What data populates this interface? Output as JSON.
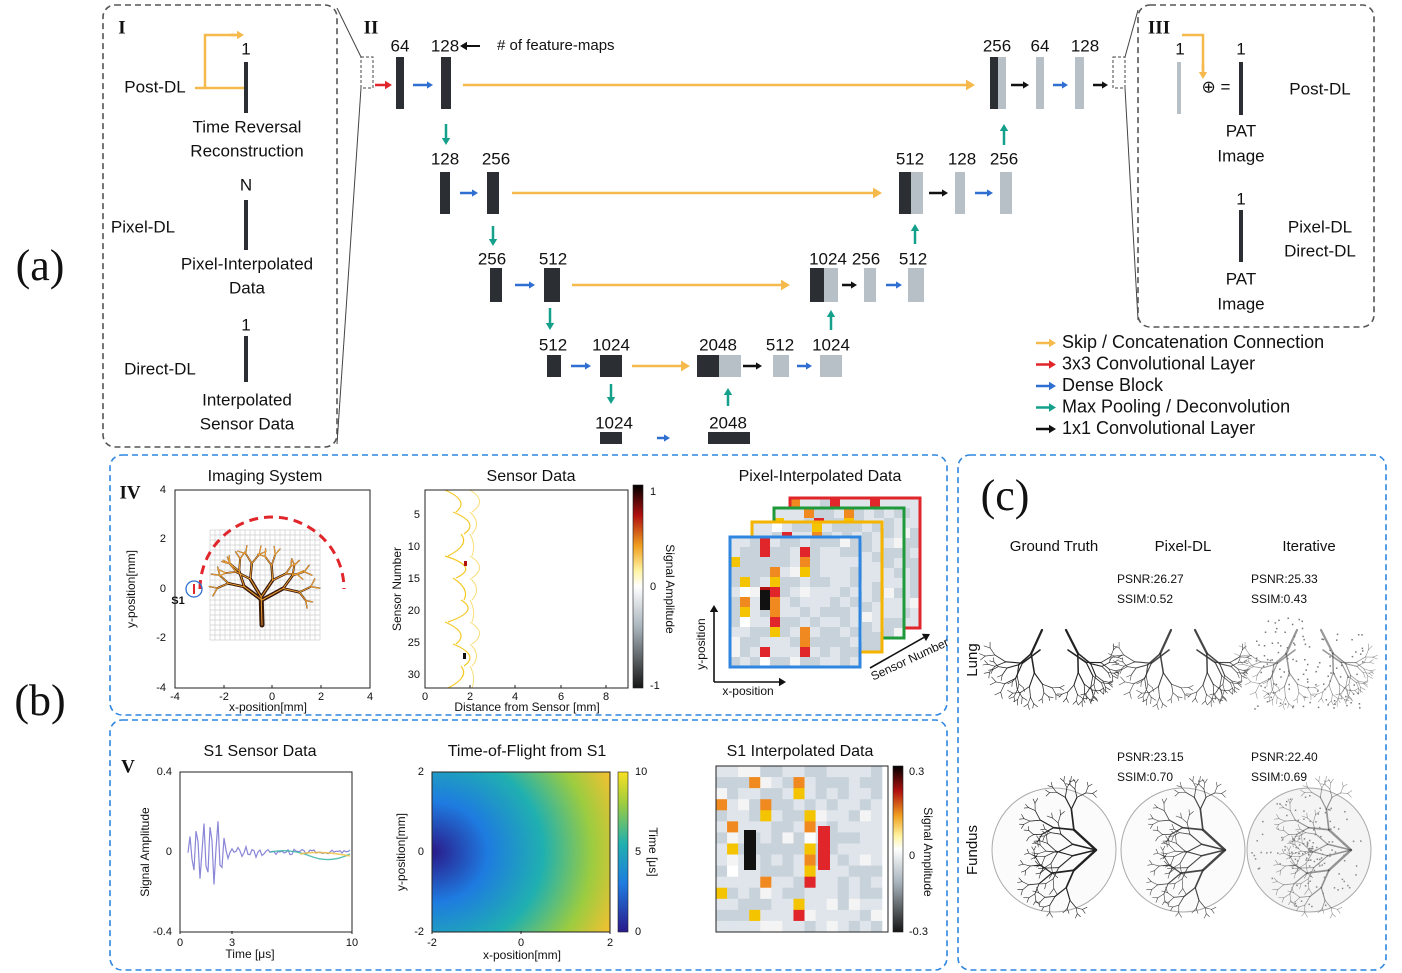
{
  "panel_labels": [
    "(a)",
    "(b)",
    "(c)"
  ],
  "architecture": {
    "input_box": {
      "numeral": "I",
      "rows": [
        {
          "method": "Post-DL",
          "channels": "1",
          "caption": [
            "Time Reversal",
            "Reconstruction"
          ]
        },
        {
          "method": "Pixel-DL",
          "channels": "N",
          "caption": [
            "Pixel-Interpolated",
            "Data"
          ]
        },
        {
          "method": "Direct-DL",
          "channels": "1",
          "caption": [
            "Interpolated",
            "Sensor Data"
          ]
        }
      ]
    },
    "network": {
      "numeral": "II",
      "annotation": "# of feature-maps",
      "feature_maps": [
        "64",
        "128",
        "128",
        "256",
        "256",
        "512",
        "512",
        "1024",
        "1024",
        "2048",
        "2048",
        "512",
        "1024",
        "1024",
        "256",
        "512",
        "512",
        "128",
        "256",
        "256",
        "64",
        "128"
      ]
    },
    "output_box": {
      "numeral": "III",
      "input_channels": "1",
      "operator": "⊕ =",
      "rows": [
        {
          "channels": "1",
          "methods": [
            "Post-DL"
          ],
          "output": [
            "PAT",
            "Image"
          ]
        },
        {
          "channels": "1",
          "methods": [
            "Pixel-DL",
            "Direct-DL"
          ],
          "output": [
            "PAT",
            "Image"
          ]
        }
      ]
    },
    "legend": [
      {
        "name": "Skip / Concatenation Connection",
        "color": "#f5b94c"
      },
      {
        "name": "3x3 Convolutional Layer",
        "color": "#e0262b"
      },
      {
        "name": "Dense Block",
        "color": "#2f6fd1"
      },
      {
        "name": "Max Pooling / Deconvolution",
        "color": "#14a08a"
      },
      {
        "name": "1x1 Convolutional Layer",
        "color": "#111111"
      }
    ]
  },
  "simulation": {
    "numeral": "IV",
    "imaging_system": {
      "title": "Imaging System",
      "xlabel": "x-position[mm]",
      "ylabel": "y-position[mm]",
      "xticks": [
        "-4",
        "-2",
        "0",
        "2",
        "4"
      ],
      "yticks": [
        "4",
        "2",
        "0",
        "-2",
        "-4"
      ],
      "sensor": "S1"
    },
    "sensor_data": {
      "title": "Sensor Data",
      "xlabel": "Distance from Sensor [mm]",
      "ylabel": "Sensor Number",
      "xticks": [
        "0",
        "2",
        "4",
        "6",
        "8"
      ],
      "yticks": [
        "5",
        "10",
        "15",
        "20",
        "25",
        "30"
      ],
      "colorbar_label": "Signal Amplitude",
      "colorbar_ticks": [
        "1",
        "0",
        "-1"
      ]
    },
    "pixel_interpolated": {
      "title": "Pixel-Interpolated Data",
      "xlabel": "x-position",
      "ylabel": "y-position",
      "zlabel": "Sensor Number"
    }
  },
  "sensor_s1": {
    "numeral": "V",
    "sensor_data": {
      "title": "S1 Sensor Data",
      "xlabel": "Time [μs]",
      "ylabel": "Signal Amplitude",
      "xticks": [
        "0",
        "3",
        "10"
      ],
      "yticks": [
        "0.4",
        "0",
        "-0.4"
      ]
    },
    "time_of_flight": {
      "title": "Time-of-Flight from S1",
      "xlabel": "x-position[mm]",
      "ylabel": "y-position[mm]",
      "xticks": [
        "-2",
        "0",
        "2"
      ],
      "yticks": [
        "2",
        "0",
        "-2"
      ],
      "colorbar_label": "Time [μs]",
      "colorbar_ticks": [
        "10",
        "5",
        "0"
      ]
    },
    "interpolated": {
      "title": "S1 Interpolated Data",
      "colorbar_label": "Signal Amplitude",
      "colorbar_ticks": [
        "0.3",
        "0",
        "-0.3"
      ]
    }
  },
  "results": {
    "columns": [
      "Ground Truth",
      "Pixel-DL",
      "Iterative"
    ],
    "rows": [
      {
        "name": "Lung",
        "metrics": [
          [
            "PSNR:26.27",
            "SSIM:0.52"
          ],
          [
            "PSNR:25.33",
            "SSIM:0.43"
          ]
        ]
      },
      {
        "name": "Fundus",
        "metrics": [
          [
            "PSNR:23.15",
            "SSIM:0.70"
          ],
          [
            "PSNR:22.40",
            "SSIM:0.69"
          ]
        ]
      }
    ]
  }
}
